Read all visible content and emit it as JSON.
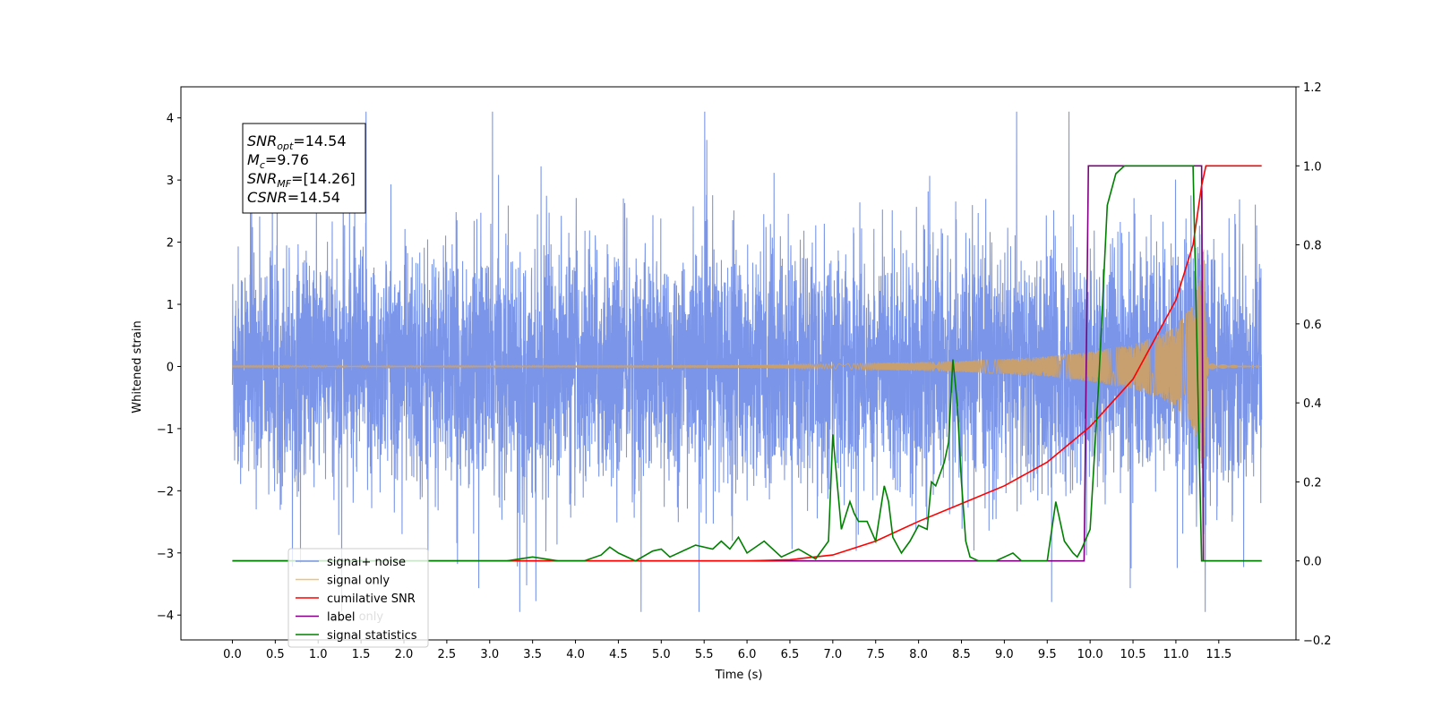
{
  "chart_data": {
    "type": "line",
    "xlabel": "Time (s)",
    "ylabel": "Whitened strain",
    "xlim": [
      -0.6,
      12.4
    ],
    "ylim_left": [
      -4.4,
      4.5
    ],
    "ylim_right": [
      -0.2,
      1.2
    ],
    "x_ticks": [
      "0.0",
      "0.5",
      "1.0",
      "1.5",
      "2.0",
      "2.5",
      "3.0",
      "3.5",
      "4.0",
      "4.5",
      "5.0",
      "5.5",
      "6.0",
      "6.5",
      "7.0",
      "7.5",
      "8.0",
      "8.5",
      "9.0",
      "9.5",
      "10.0",
      "10.5",
      "11.0",
      "11.5"
    ],
    "y_ticks_left": [
      "−4",
      "−3",
      "−2",
      "−1",
      "0",
      "1",
      "2",
      "3",
      "4"
    ],
    "y_ticks_right": [
      "−0.2",
      "0.0",
      "0.2",
      "0.4",
      "0.6",
      "0.8",
      "1.0",
      "1.2"
    ],
    "annotation": {
      "lines": [
        {
          "label": "SNR",
          "sub": "opt",
          "value": "=14.54"
        },
        {
          "label": "M",
          "sub": "c",
          "value": "=9.76"
        },
        {
          "label": "SNR",
          "sub": "MF",
          "value": "=[14.26]"
        },
        {
          "label": "CSNR",
          "sub": "",
          "value": "=14.54"
        }
      ]
    },
    "legend": {
      "placement": "lower-left",
      "entries": [
        {
          "name": "signal+ noise",
          "color": "#7b96e8"
        },
        {
          "name": "signal only",
          "color": "#f5c26b"
        },
        {
          "name": "cumilative SNR",
          "color": "#ff0000"
        },
        {
          "name": "label",
          "color": "#7f007f"
        },
        {
          "name": "signal statistics",
          "color": "#008000"
        }
      ],
      "hidden_entry_text": "label only"
    },
    "series": [
      {
        "name": "signal+ noise",
        "axis": "left",
        "color": "#7b96e8",
        "description_values": {
          "x_range": [
            0.0,
            12.0
          ],
          "typical_amplitude": 1.5,
          "max": 4.1,
          "min": -3.95
        }
      },
      {
        "name": "signal only",
        "axis": "left",
        "color": "#c8a070",
        "envelope": [
          [
            0.0,
            0.005
          ],
          [
            6.0,
            0.02
          ],
          [
            7.0,
            0.04
          ],
          [
            8.0,
            0.07
          ],
          [
            8.5,
            0.09
          ],
          [
            9.0,
            0.12
          ],
          [
            9.5,
            0.16
          ],
          [
            10.0,
            0.24
          ],
          [
            10.5,
            0.36
          ],
          [
            10.8,
            0.5
          ],
          [
            11.0,
            0.65
          ],
          [
            11.2,
            1.0
          ],
          [
            11.3,
            1.6
          ],
          [
            11.35,
            2.2
          ],
          [
            11.38,
            0.05
          ],
          [
            12.0,
            0.0
          ]
        ]
      },
      {
        "name": "cumilative SNR",
        "axis": "right",
        "color": "#ff0000",
        "x": [
          0.0,
          5.0,
          6.0,
          6.5,
          7.0,
          7.5,
          8.0,
          8.5,
          9.0,
          9.5,
          10.0,
          10.5,
          11.0,
          11.2,
          11.3,
          11.35,
          11.5,
          11.8,
          12.0
        ],
        "y": [
          0.0,
          0.0,
          0.0,
          0.003,
          0.015,
          0.05,
          0.1,
          0.145,
          0.19,
          0.25,
          0.34,
          0.46,
          0.66,
          0.8,
          0.95,
          1.0,
          1.0,
          1.0,
          1.0
        ]
      },
      {
        "name": "label",
        "axis": "right",
        "color": "#7f007f",
        "x": [
          0.0,
          9.93,
          9.98,
          11.3,
          11.32,
          12.0
        ],
        "y": [
          0.0,
          0.0,
          1.0,
          1.0,
          0.0,
          0.0
        ]
      },
      {
        "name": "signal statistics",
        "axis": "right",
        "color": "#008000",
        "x": [
          0.0,
          3.2,
          3.5,
          3.8,
          4.1,
          4.3,
          4.4,
          4.5,
          4.7,
          4.9,
          5.0,
          5.1,
          5.3,
          5.4,
          5.6,
          5.7,
          5.8,
          5.9,
          6.0,
          6.2,
          6.4,
          6.6,
          6.8,
          6.95,
          7.0,
          7.05,
          7.1,
          7.2,
          7.25,
          7.3,
          7.4,
          7.5,
          7.6,
          7.65,
          7.7,
          7.8,
          7.9,
          8.0,
          8.1,
          8.15,
          8.2,
          8.3,
          8.35,
          8.4,
          8.45,
          8.5,
          8.55,
          8.6,
          8.7,
          8.9,
          9.1,
          9.2,
          9.3,
          9.5,
          9.6,
          9.7,
          9.8,
          9.85,
          9.9,
          10.0,
          10.1,
          10.2,
          10.3,
          10.4,
          10.5,
          10.6,
          10.7,
          10.8,
          11.0,
          11.2,
          11.3,
          11.4,
          11.5,
          12.0
        ],
        "y": [
          0.0,
          0.0,
          0.01,
          0.0,
          0.0,
          0.015,
          0.035,
          0.02,
          0.0,
          0.025,
          0.03,
          0.01,
          0.03,
          0.04,
          0.03,
          0.05,
          0.03,
          0.06,
          0.02,
          0.05,
          0.01,
          0.03,
          0.005,
          0.05,
          0.32,
          0.2,
          0.08,
          0.15,
          0.12,
          0.1,
          0.1,
          0.05,
          0.19,
          0.15,
          0.06,
          0.02,
          0.05,
          0.09,
          0.08,
          0.2,
          0.19,
          0.25,
          0.3,
          0.51,
          0.4,
          0.2,
          0.05,
          0.01,
          0.0,
          0.0,
          0.02,
          0.0,
          0.0,
          0.0,
          0.15,
          0.05,
          0.02,
          0.01,
          0.03,
          0.08,
          0.45,
          0.9,
          0.98,
          1.0,
          1.0,
          1.0,
          1.0,
          1.0,
          1.0,
          1.0,
          0.0,
          0.0,
          0.0,
          0.0
        ]
      }
    ]
  }
}
